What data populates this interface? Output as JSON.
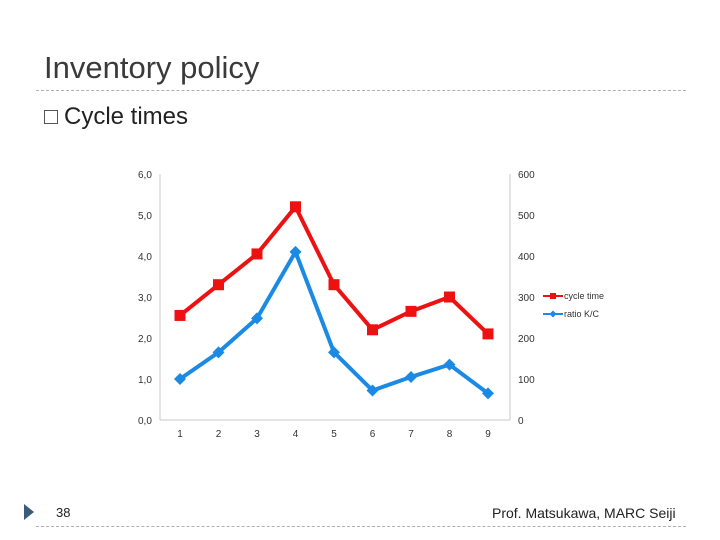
{
  "slide": {
    "title": "Inventory policy",
    "bullet": "Cycle times",
    "page_number": "38",
    "footer": "Prof. Matsukawa, MARC Seiji"
  },
  "chart_data": {
    "type": "line",
    "x": [
      1,
      2,
      3,
      4,
      5,
      6,
      7,
      8,
      9
    ],
    "categories": [
      "1",
      "2",
      "3",
      "4",
      "5",
      "6",
      "7",
      "8",
      "9"
    ],
    "left_axis": {
      "ylim": [
        0,
        6
      ],
      "ticks": [
        "0,0",
        "1,0",
        "2,0",
        "3,0",
        "4,0",
        "5,0",
        "6,0"
      ]
    },
    "right_axis": {
      "ylim": [
        0,
        600
      ],
      "ticks": [
        "0",
        "100",
        "200",
        "300",
        "400",
        "500",
        "600"
      ]
    },
    "series": [
      {
        "name": "cycle time",
        "axis": "left",
        "marker": "square",
        "color": "#ee1111",
        "values": [
          2.55,
          3.3,
          4.05,
          5.2,
          3.3,
          2.2,
          2.65,
          3.0,
          2.1
        ]
      },
      {
        "name": "ratio K/C",
        "axis": "right",
        "marker": "diamond",
        "color": "#1a8ae5",
        "values": [
          100,
          165,
          248,
          410,
          165,
          72,
          105,
          135,
          65
        ]
      }
    ],
    "grid": false,
    "legend": "right"
  }
}
